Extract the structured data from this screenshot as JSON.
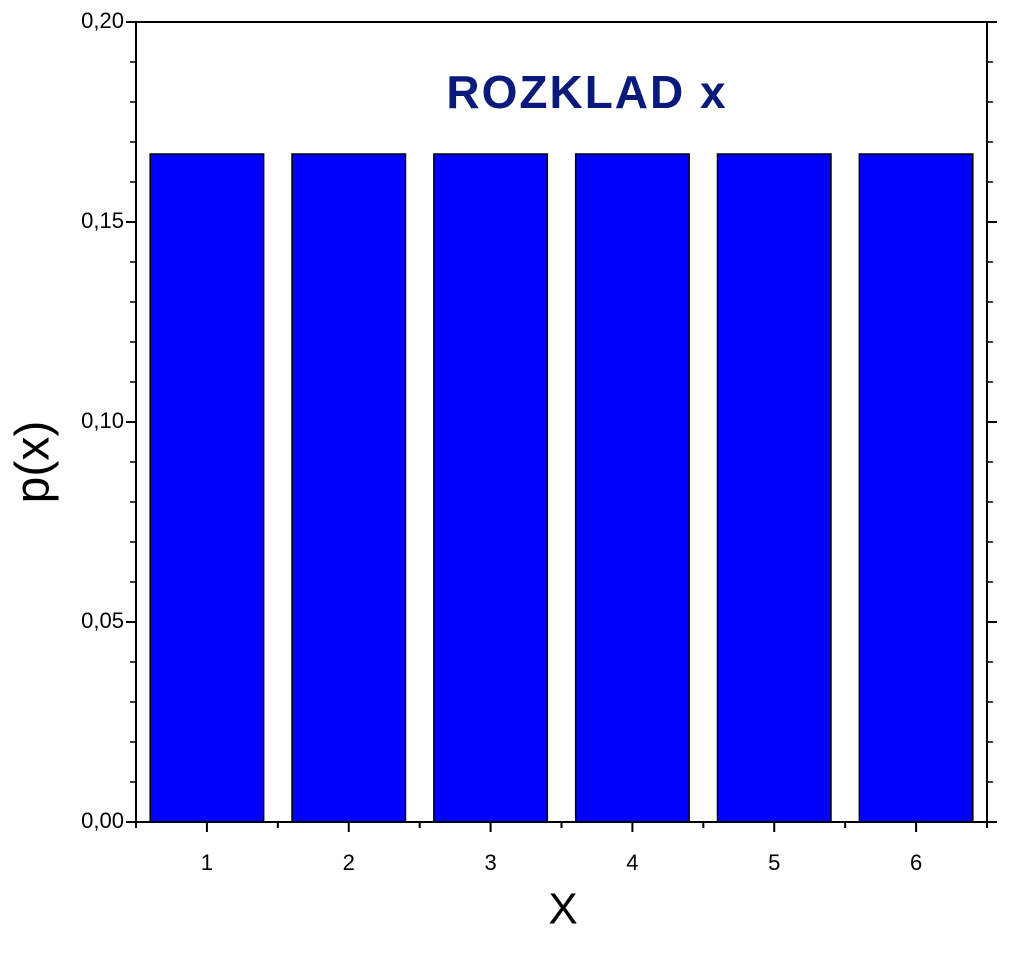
{
  "chart_data": {
    "type": "bar",
    "title": "ROZKLAD  x",
    "x_label": "X",
    "y_label": "p(x)",
    "categories": [
      "1",
      "2",
      "3",
      "4",
      "5",
      "6"
    ],
    "values": [
      0.167,
      0.167,
      0.167,
      0.167,
      0.167,
      0.167
    ],
    "color": "#0000ff",
    "title_color": "#0a1a7a",
    "ylim": [
      0,
      0.2
    ],
    "yticks": [
      {
        "value": 0,
        "label": "0,00"
      },
      {
        "value": 0.05,
        "label": "0,05"
      },
      {
        "value": 0.1,
        "label": "0,10"
      },
      {
        "value": 0.15,
        "label": "0,15"
      },
      {
        "value": 0.2,
        "label": "0,20"
      }
    ],
    "yminor": 4,
    "grid": false
  }
}
